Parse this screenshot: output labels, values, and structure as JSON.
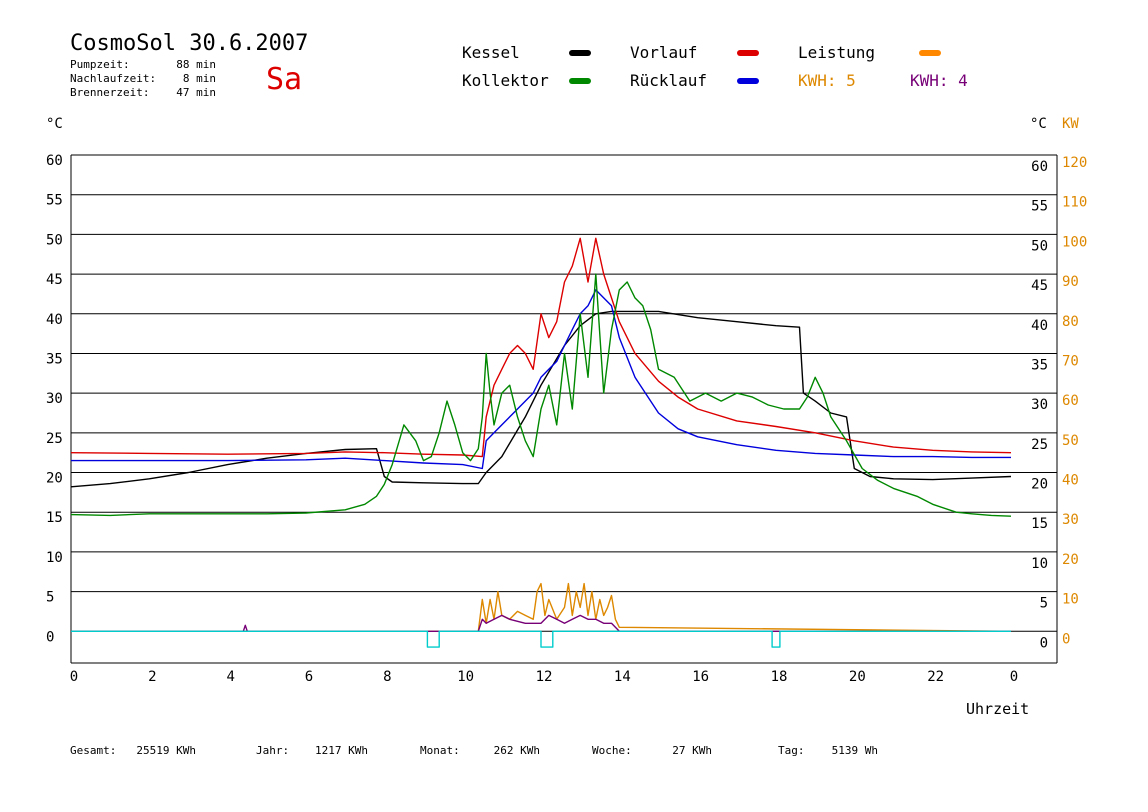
{
  "header": {
    "title": "CosmoSol 30.6.2007",
    "day": "Sa",
    "stats": [
      {
        "label": "Pumpzeit:",
        "value": "88 min"
      },
      {
        "label": "Nachlaufzeit:",
        "value": "8 min"
      },
      {
        "label": "Brennerzeit:",
        "value": "47 min"
      }
    ]
  },
  "legend": [
    {
      "label": "Kessel",
      "color": "#000000"
    },
    {
      "label": "Vorlauf",
      "color": "#dd0000"
    },
    {
      "label": "Leistung",
      "color": "#ff8800"
    },
    {
      "label": "Kollektor",
      "color": "#008800"
    },
    {
      "label": "Rücklauf",
      "color": "#0000dd"
    }
  ],
  "kwh_labels": [
    {
      "text": "KWH: 5",
      "color": "#dd8800"
    },
    {
      "text": "KWH: 4",
      "color": "#770077"
    }
  ],
  "axis_units": {
    "left": "°C",
    "right": "°C",
    "right_kw": "KW"
  },
  "xlabel": "Uhrzeit",
  "footer": [
    {
      "label": "Gesamt:",
      "value": "25519 KWh"
    },
    {
      "label": "Jahr:",
      "value": "1217 KWh"
    },
    {
      "label": "Monat:",
      "value": "262 KWh"
    },
    {
      "label": "Woche:",
      "value": "27 KWh"
    },
    {
      "label": "Tag:",
      "value": "5139 Wh"
    }
  ],
  "chart_data": {
    "type": "line",
    "title": "CosmoSol 30.6.2007",
    "xlabel": "Uhrzeit",
    "ylabel": "°C",
    "y2label": "KW",
    "xlim": [
      0,
      24
    ],
    "ylim": [
      -4,
      60
    ],
    "y2lim": [
      -8,
      120
    ],
    "x_ticks": [
      "0",
      "2",
      "4",
      "6",
      "8",
      "10",
      "12",
      "14",
      "16",
      "18",
      "20",
      "22",
      "0"
    ],
    "y_ticks": [
      60,
      55,
      50,
      45,
      40,
      35,
      30,
      25,
      20,
      15,
      10,
      5,
      0
    ],
    "y2_ticks": [
      "120",
      "110",
      "100",
      "90",
      "80",
      "70",
      "60",
      "50",
      "40",
      "30",
      "20",
      "10",
      "0"
    ],
    "grid": true,
    "series": [
      {
        "name": "Kessel",
        "color": "#000000",
        "x": [
          0,
          1,
          2,
          3,
          4,
          5,
          6,
          7,
          7.8,
          8.0,
          8.2,
          9,
          10,
          10.4,
          10.6,
          11,
          11.6,
          12,
          12.6,
          13,
          13.4,
          13.8,
          14,
          15,
          16,
          17,
          18,
          18.6,
          18.7,
          19,
          19.4,
          19.8,
          20,
          20.4,
          21,
          22,
          23,
          24
        ],
        "y": [
          18.2,
          18.6,
          19.2,
          20.0,
          21.0,
          21.8,
          22.4,
          22.9,
          23.0,
          19.5,
          18.8,
          18.7,
          18.6,
          18.6,
          20.0,
          22.0,
          27.0,
          31.0,
          36.0,
          38.5,
          40.0,
          40.3,
          40.3,
          40.3,
          39.5,
          39.0,
          38.5,
          38.3,
          30.0,
          29.0,
          27.5,
          27.0,
          20.5,
          19.5,
          19.2,
          19.1,
          19.3,
          19.5
        ]
      },
      {
        "name": "Vorlauf",
        "color": "#dd0000",
        "x": [
          0,
          2,
          4,
          6,
          7,
          8,
          9,
          10,
          10.5,
          10.6,
          10.8,
          11,
          11.2,
          11.4,
          11.6,
          11.8,
          12,
          12.2,
          12.4,
          12.6,
          12.8,
          13,
          13.2,
          13.4,
          13.6,
          13.8,
          14,
          14.4,
          15,
          15.5,
          16,
          17,
          18,
          19,
          20,
          21,
          22,
          23,
          24
        ],
        "y": [
          22.5,
          22.4,
          22.3,
          22.4,
          22.6,
          22.5,
          22.3,
          22.2,
          22.0,
          27.0,
          31.0,
          33.0,
          35.0,
          36.0,
          35.0,
          33.0,
          40.0,
          37.0,
          39.0,
          44.0,
          46.0,
          49.5,
          44.0,
          49.5,
          45.0,
          42.0,
          39.0,
          35.0,
          31.5,
          29.5,
          28.0,
          26.5,
          25.8,
          25.0,
          24.0,
          23.2,
          22.8,
          22.6,
          22.5
        ]
      },
      {
        "name": "Rücklauf",
        "color": "#0000dd",
        "x": [
          0,
          2,
          4,
          6,
          7,
          8,
          9,
          10,
          10.5,
          10.6,
          10.8,
          11,
          11.2,
          11.4,
          11.6,
          11.8,
          12,
          12.2,
          12.4,
          12.6,
          12.8,
          13,
          13.2,
          13.4,
          13.6,
          13.8,
          14,
          14.4,
          15,
          15.5,
          16,
          17,
          18,
          19,
          20,
          21,
          22,
          23,
          24
        ],
        "y": [
          21.5,
          21.5,
          21.5,
          21.6,
          21.8,
          21.5,
          21.2,
          21.0,
          20.5,
          24.0,
          25.0,
          26.0,
          27.0,
          28.0,
          29.0,
          30.0,
          32.0,
          33.0,
          34.0,
          36.0,
          38.0,
          40.0,
          41.0,
          43.0,
          42.0,
          41.0,
          37.0,
          32.0,
          27.5,
          25.5,
          24.5,
          23.5,
          22.8,
          22.4,
          22.2,
          22.0,
          22.0,
          21.9,
          21.9
        ]
      },
      {
        "name": "Kollektor",
        "color": "#008800",
        "x": [
          0,
          1,
          2,
          3,
          4,
          5,
          6,
          7,
          7.5,
          7.8,
          8.0,
          8.2,
          8.5,
          8.8,
          9.0,
          9.2,
          9.4,
          9.6,
          9.8,
          10.0,
          10.2,
          10.4,
          10.5,
          10.6,
          10.7,
          10.8,
          11,
          11.2,
          11.4,
          11.6,
          11.8,
          12.0,
          12.2,
          12.4,
          12.6,
          12.8,
          13.0,
          13.2,
          13.4,
          13.6,
          13.8,
          14.0,
          14.2,
          14.4,
          14.6,
          14.8,
          15,
          15.4,
          15.8,
          16.2,
          16.6,
          17,
          17.4,
          17.8,
          18.2,
          18.6,
          18.8,
          19.0,
          19.2,
          19.4,
          19.8,
          20.2,
          20.6,
          21,
          21.6,
          22,
          22.6,
          23,
          23.5,
          24
        ],
        "y": [
          14.7,
          14.6,
          14.8,
          14.8,
          14.8,
          14.8,
          14.9,
          15.3,
          16.0,
          17.0,
          18.5,
          21.0,
          26.0,
          24.0,
          21.5,
          22.0,
          25.0,
          29.0,
          26.0,
          22.5,
          21.5,
          23.0,
          27.0,
          35.0,
          30.0,
          26.0,
          30.0,
          31.0,
          27.0,
          24.0,
          22.0,
          28.0,
          31.0,
          26.0,
          35.0,
          28.0,
          40.0,
          32.0,
          45.0,
          30.0,
          38.0,
          43.0,
          44.0,
          42.0,
          41.0,
          38.0,
          33.0,
          32.0,
          29.0,
          30.0,
          29.0,
          30.0,
          29.5,
          28.5,
          28.0,
          28.0,
          29.5,
          32.0,
          30.0,
          27.0,
          24.0,
          20.5,
          19.0,
          18.0,
          17.0,
          16.0,
          15.0,
          14.8,
          14.6,
          14.5
        ]
      },
      {
        "name": "Leistung",
        "color": "#dd8800",
        "axis": "y2",
        "x": [
          0,
          10.4,
          10.5,
          10.6,
          10.7,
          10.8,
          10.9,
          11.0,
          11.2,
          11.4,
          11.6,
          11.8,
          11.9,
          12.0,
          12.1,
          12.2,
          12.4,
          12.6,
          12.7,
          12.8,
          12.9,
          13.0,
          13.1,
          13.2,
          13.3,
          13.4,
          13.5,
          13.6,
          13.7,
          13.8,
          13.9,
          14.0,
          24
        ],
        "y": [
          0,
          0,
          8,
          2,
          8,
          3,
          10,
          4,
          3,
          5,
          4,
          3,
          10,
          12,
          4,
          8,
          3,
          6,
          12,
          4,
          10,
          6,
          12,
          4,
          10,
          3,
          8,
          4,
          6,
          9,
          3,
          1,
          0
        ]
      },
      {
        "name": "KWH: 4",
        "color": "#770077",
        "axis": "y2",
        "x": [
          0,
          4.4,
          4.45,
          4.5,
          10.4,
          10.5,
          10.6,
          10.8,
          11,
          11.2,
          11.6,
          12,
          12.2,
          12.4,
          12.6,
          12.8,
          13,
          13.2,
          13.4,
          13.6,
          13.8,
          14,
          24
        ],
        "y": [
          0,
          0,
          1.5,
          0,
          0,
          3,
          2,
          3,
          4,
          3,
          2,
          2,
          4,
          3,
          2,
          3,
          4,
          3,
          3,
          2,
          2,
          0,
          0
        ]
      },
      {
        "name": "",
        "color": "#00cccc",
        "x": [
          0,
          9.1,
          9.1,
          9.4,
          9.4,
          12.0,
          12.0,
          12.3,
          12.3,
          17.9,
          17.9,
          18.1,
          18.1,
          24
        ],
        "y": [
          0,
          0,
          -2,
          -2,
          0,
          0,
          -2,
          -2,
          0,
          0,
          -2,
          -2,
          0,
          0
        ]
      }
    ]
  }
}
